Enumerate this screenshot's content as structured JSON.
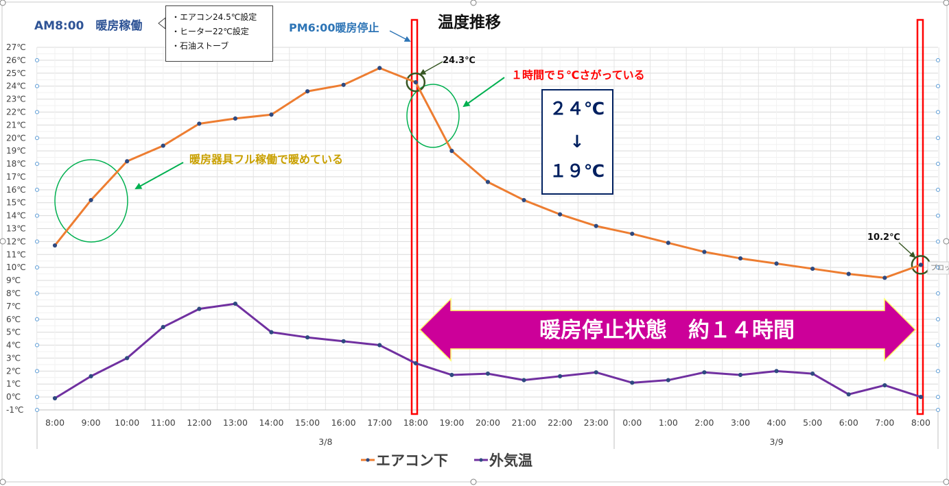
{
  "chart_data": {
    "type": "line",
    "title": "温度推移",
    "x": [
      "8:00",
      "9:00",
      "10:00",
      "11:00",
      "12:00",
      "13:00",
      "14:00",
      "15:00",
      "16:00",
      "17:00",
      "18:00",
      "19:00",
      "20:00",
      "21:00",
      "22:00",
      "23:00",
      "0:00",
      "1:00",
      "2:00",
      "3:00",
      "4:00",
      "5:00",
      "6:00",
      "7:00",
      "8:00"
    ],
    "x_groups": [
      {
        "label": "3/8",
        "from": 0,
        "to": 15
      },
      {
        "label": "3/9",
        "from": 16,
        "to": 24
      }
    ],
    "y_ticks": [
      "-1℃",
      "0℃",
      "1℃",
      "2℃",
      "3℃",
      "4℃",
      "5℃",
      "6℃",
      "7℃",
      "8℃",
      "9℃",
      "10℃",
      "11℃",
      "12℃",
      "13℃",
      "14℃",
      "15℃",
      "16℃",
      "17℃",
      "18℃",
      "19℃",
      "20℃",
      "21℃",
      "22℃",
      "23℃",
      "24℃",
      "25℃",
      "26℃",
      "27℃"
    ],
    "ylim": [
      -1,
      27
    ],
    "grid": true,
    "legend_position": "bottom",
    "series": [
      {
        "name": "エアコン下",
        "color": "#ED7D31",
        "values": [
          11.7,
          15.2,
          18.2,
          19.4,
          21.1,
          21.5,
          21.8,
          23.6,
          24.1,
          25.4,
          24.3,
          19.0,
          16.6,
          15.2,
          14.1,
          13.2,
          12.6,
          11.9,
          11.2,
          10.7,
          10.3,
          9.9,
          9.5,
          9.2,
          10.2
        ]
      },
      {
        "name": "外気温",
        "color": "#7030A0",
        "values": [
          -0.1,
          1.6,
          3.0,
          5.4,
          6.8,
          7.2,
          5.0,
          4.6,
          4.3,
          4.0,
          2.6,
          1.7,
          1.8,
          1.3,
          1.6,
          1.9,
          1.1,
          1.3,
          1.9,
          1.7,
          2.0,
          1.8,
          0.2,
          0.9,
          0.0
        ]
      }
    ],
    "annotations": {
      "start": "AM8:00　暖房稼働",
      "settings": [
        "・エアコン24.5℃設定",
        "・ヒーター22℃設定",
        "・石油ストーブ"
      ],
      "stop": "PM6:00暖房停止",
      "peak_value": "24.3℃",
      "drop_note": "１時間で５℃さがっている",
      "drop_from": "２４℃",
      "drop_arrow": "↓",
      "drop_to": "１９℃",
      "heating_note": "暖房器具フル稼働で暖めている",
      "end_value": "10.2℃",
      "duration": "暖房停止状態　約１４時間",
      "tooltip": "プロット"
    },
    "colors": {
      "orange": "#ED7D31",
      "purple": "#7030A0",
      "green": "#00B050",
      "dark_green": "#375623",
      "red": "#FF0000",
      "magenta": "#CC0099",
      "navy": "#002060",
      "blue": "#2E75B6",
      "gold": "#C9A000"
    }
  }
}
